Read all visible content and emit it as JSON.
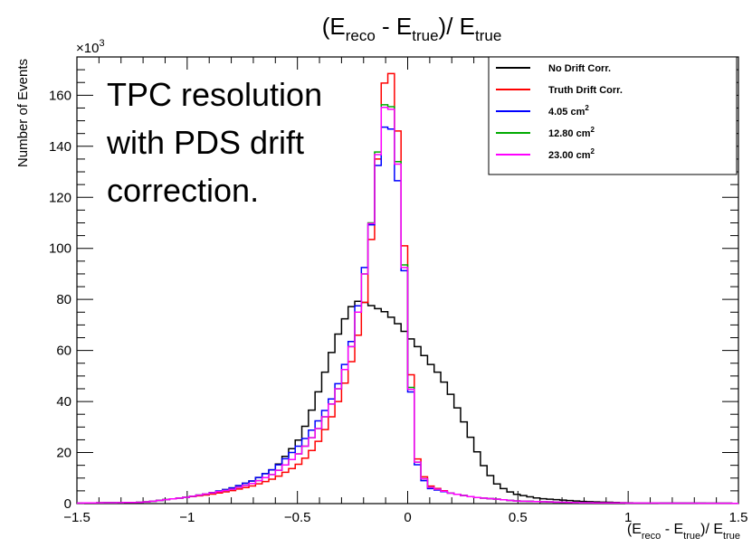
{
  "chart_data": {
    "type": "line",
    "title": {
      "base": "(E",
      "sub1": "reco",
      "mid": " - E",
      "sub2": "true",
      "tail": ")/ E",
      "sub3": "true"
    },
    "xlabel": {
      "base": "(E",
      "sub1": "reco",
      "mid": " - E",
      "sub2": "true",
      "tail": ")/ E",
      "sub3": "true"
    },
    "ylabel": "Number of Events",
    "y_multiplier": {
      "base": "×10",
      "exp": "3"
    },
    "xlim": [
      -1.5,
      1.5
    ],
    "ylim": [
      0,
      175
    ],
    "xticks": [
      "−1.5",
      "−1",
      "−0.5",
      "0",
      "0.5",
      "1",
      "1.5"
    ],
    "yticks": [
      "0",
      "20",
      "40",
      "60",
      "80",
      "100",
      "120",
      "140",
      "160"
    ],
    "annotation": [
      "TPC resolution",
      "with PDS drift",
      "correction."
    ],
    "legend_position": "top-right",
    "series": [
      {
        "name": "No Drift Corr.",
        "unit_sup": "",
        "color": "#000000",
        "points": [
          [
            -1.5,
            0.2
          ],
          [
            -1.2,
            0.5
          ],
          [
            -1.0,
            2.5
          ],
          [
            -0.9,
            4
          ],
          [
            -0.8,
            6
          ],
          [
            -0.7,
            9
          ],
          [
            -0.6,
            14
          ],
          [
            -0.5,
            24
          ],
          [
            -0.45,
            33
          ],
          [
            -0.4,
            45
          ],
          [
            -0.35,
            58
          ],
          [
            -0.3,
            70
          ],
          [
            -0.25,
            78
          ],
          [
            -0.22,
            79.5
          ],
          [
            -0.2,
            79
          ],
          [
            -0.15,
            77
          ],
          [
            -0.1,
            75
          ],
          [
            -0.05,
            71
          ],
          [
            0.0,
            66
          ],
          [
            0.05,
            61
          ],
          [
            0.1,
            55
          ],
          [
            0.15,
            50
          ],
          [
            0.2,
            42
          ],
          [
            0.25,
            33
          ],
          [
            0.3,
            23
          ],
          [
            0.35,
            14
          ],
          [
            0.4,
            8
          ],
          [
            0.45,
            5
          ],
          [
            0.5,
            3.5
          ],
          [
            0.6,
            2
          ],
          [
            0.8,
            0.8
          ],
          [
            1.0,
            0.3
          ],
          [
            1.5,
            0.1
          ]
        ]
      },
      {
        "name": "Truth Drift Corr.",
        "unit_sup": "",
        "color": "#ff0000",
        "points": [
          [
            -1.5,
            0.2
          ],
          [
            -1.2,
            0.5
          ],
          [
            -1.0,
            2.5
          ],
          [
            -0.9,
            3.5
          ],
          [
            -0.8,
            5
          ],
          [
            -0.7,
            7
          ],
          [
            -0.6,
            10
          ],
          [
            -0.5,
            15
          ],
          [
            -0.45,
            19
          ],
          [
            -0.4,
            25
          ],
          [
            -0.35,
            33
          ],
          [
            -0.3,
            43
          ],
          [
            -0.25,
            57
          ],
          [
            -0.2,
            75
          ],
          [
            -0.17,
            98
          ],
          [
            -0.15,
            120
          ],
          [
            -0.13,
            140
          ],
          [
            -0.11,
            163
          ],
          [
            -0.09,
            170
          ],
          [
            -0.07,
            168
          ],
          [
            -0.05,
            152
          ],
          [
            -0.03,
            128
          ],
          [
            -0.01,
            92
          ],
          [
            0.01,
            58
          ],
          [
            0.03,
            28
          ],
          [
            0.05,
            14
          ],
          [
            0.1,
            7
          ],
          [
            0.2,
            4
          ],
          [
            0.3,
            2.5
          ],
          [
            0.5,
            1
          ],
          [
            0.8,
            0.3
          ],
          [
            1.5,
            0.1
          ]
        ]
      },
      {
        "name": "4.05 cm",
        "unit_sup": "2",
        "color": "#0000ff",
        "points": [
          [
            -1.5,
            0.2
          ],
          [
            -1.2,
            0.5
          ],
          [
            -1.0,
            2.5
          ],
          [
            -0.9,
            4
          ],
          [
            -0.8,
            6
          ],
          [
            -0.7,
            9
          ],
          [
            -0.6,
            14
          ],
          [
            -0.5,
            22
          ],
          [
            -0.45,
            27
          ],
          [
            -0.4,
            33
          ],
          [
            -0.35,
            40
          ],
          [
            -0.3,
            50
          ],
          [
            -0.25,
            65
          ],
          [
            -0.2,
            90
          ],
          [
            -0.17,
            105
          ],
          [
            -0.15,
            122
          ],
          [
            -0.13,
            136
          ],
          [
            -0.11,
            147
          ],
          [
            -0.09,
            149
          ],
          [
            -0.07,
            146
          ],
          [
            -0.05,
            132
          ],
          [
            -0.03,
            110
          ],
          [
            -0.01,
            85
          ],
          [
            0.01,
            50
          ],
          [
            0.03,
            25
          ],
          [
            0.05,
            12
          ],
          [
            0.1,
            6
          ],
          [
            0.2,
            4
          ],
          [
            0.3,
            2.5
          ],
          [
            0.5,
            1
          ],
          [
            0.8,
            0.3
          ],
          [
            1.5,
            0.1
          ]
        ]
      },
      {
        "name": "12.80 cm",
        "unit_sup": "2",
        "color": "#00aa00",
        "points": [
          [
            -1.5,
            0.2
          ],
          [
            -1.2,
            0.5
          ],
          [
            -1.0,
            2.5
          ],
          [
            -0.9,
            4
          ],
          [
            -0.8,
            5.5
          ],
          [
            -0.7,
            8
          ],
          [
            -0.6,
            12
          ],
          [
            -0.5,
            19
          ],
          [
            -0.45,
            24
          ],
          [
            -0.4,
            30
          ],
          [
            -0.35,
            38
          ],
          [
            -0.3,
            48
          ],
          [
            -0.25,
            63
          ],
          [
            -0.2,
            87
          ],
          [
            -0.17,
            105
          ],
          [
            -0.15,
            125
          ],
          [
            -0.13,
            142
          ],
          [
            -0.11,
            156
          ],
          [
            -0.09,
            157
          ],
          [
            -0.07,
            155
          ],
          [
            -0.05,
            140
          ],
          [
            -0.03,
            116
          ],
          [
            -0.01,
            86
          ],
          [
            0.01,
            52
          ],
          [
            0.03,
            26
          ],
          [
            0.05,
            13
          ],
          [
            0.1,
            6.5
          ],
          [
            0.2,
            4
          ],
          [
            0.3,
            2.5
          ],
          [
            0.5,
            1
          ],
          [
            0.8,
            0.3
          ],
          [
            1.5,
            0.1
          ]
        ]
      },
      {
        "name": "23.00 cm",
        "unit_sup": "2",
        "color": "#ff00ff",
        "points": [
          [
            -1.5,
            0.2
          ],
          [
            -1.2,
            0.5
          ],
          [
            -1.0,
            2.5
          ],
          [
            -0.9,
            4
          ],
          [
            -0.8,
            5.5
          ],
          [
            -0.7,
            8
          ],
          [
            -0.6,
            12
          ],
          [
            -0.5,
            19
          ],
          [
            -0.45,
            24
          ],
          [
            -0.4,
            30
          ],
          [
            -0.35,
            38
          ],
          [
            -0.3,
            48
          ],
          [
            -0.25,
            63
          ],
          [
            -0.2,
            87
          ],
          [
            -0.17,
            105
          ],
          [
            -0.15,
            124
          ],
          [
            -0.13,
            141
          ],
          [
            -0.11,
            155
          ],
          [
            -0.09,
            156
          ],
          [
            -0.07,
            154
          ],
          [
            -0.05,
            139
          ],
          [
            -0.03,
            115
          ],
          [
            -0.01,
            85
          ],
          [
            0.01,
            51
          ],
          [
            0.03,
            26
          ],
          [
            0.05,
            13
          ],
          [
            0.1,
            6.5
          ],
          [
            0.2,
            4
          ],
          [
            0.3,
            2.5
          ],
          [
            0.5,
            1
          ],
          [
            0.8,
            0.3
          ],
          [
            1.5,
            0.1
          ]
        ]
      }
    ]
  }
}
